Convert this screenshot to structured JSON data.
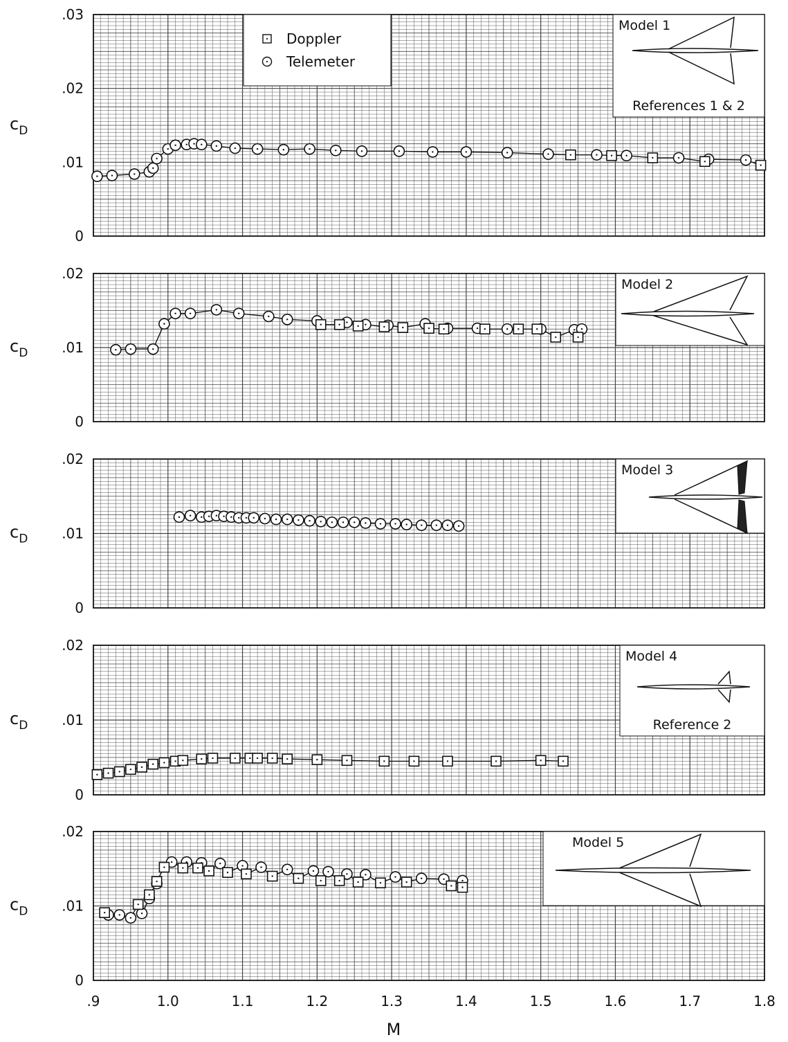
{
  "chart_data": [
    {
      "type": "scatter",
      "ylabel": "CD",
      "xlim": [
        0.9,
        1.8
      ],
      "ylim": [
        0,
        0.03
      ],
      "yticks": [
        "0",
        ".01",
        ".02",
        ".03"
      ],
      "grid": true,
      "legend": {
        "placement": "top-center",
        "entries": [
          {
            "symbol": "square",
            "label": "Doppler"
          },
          {
            "symbol": "circle",
            "label": "Telemeter"
          }
        ]
      },
      "annotation": {
        "title": "Model 1",
        "subtitle": "References 1 & 2",
        "planform": "model1"
      },
      "series": [
        {
          "name": "Telemeter",
          "marker": "circle",
          "x": [
            0.905,
            0.925,
            0.955,
            0.975,
            0.98,
            0.985,
            1.0,
            1.01,
            1.025,
            1.035,
            1.045,
            1.065,
            1.09,
            1.12,
            1.155,
            1.19,
            1.225,
            1.26,
            1.31,
            1.355,
            1.4,
            1.455,
            1.51,
            1.575,
            1.615,
            1.685,
            1.725,
            1.775
          ],
          "y": [
            0.0081,
            0.0082,
            0.0084,
            0.0087,
            0.0092,
            0.0105,
            0.0118,
            0.0123,
            0.0124,
            0.0125,
            0.0124,
            0.0122,
            0.0119,
            0.0118,
            0.0117,
            0.0118,
            0.0116,
            0.0115,
            0.0115,
            0.0114,
            0.0114,
            0.0113,
            0.0111,
            0.011,
            0.0109,
            0.0106,
            0.0104,
            0.0103
          ]
        },
        {
          "name": "Doppler",
          "marker": "square",
          "x": [
            1.54,
            1.595,
            1.65,
            1.72,
            1.795
          ],
          "y": [
            0.011,
            0.0109,
            0.0106,
            0.0101,
            0.0096
          ]
        }
      ]
    },
    {
      "type": "scatter",
      "ylabel": "CD",
      "xlim": [
        0.9,
        1.8
      ],
      "ylim": [
        0,
        0.02
      ],
      "yticks": [
        "0",
        ".01",
        ".02"
      ],
      "grid": true,
      "annotation": {
        "title": "Model 2",
        "planform": "model2"
      },
      "series": [
        {
          "name": "Telemeter",
          "marker": "circle",
          "x": [
            0.93,
            0.95,
            0.98,
            0.995,
            1.01,
            1.03,
            1.065,
            1.095,
            1.135,
            1.16,
            1.2,
            1.24,
            1.265,
            1.295,
            1.345,
            1.375,
            1.415,
            1.455,
            1.5,
            1.545,
            1.555
          ],
          "y": [
            0.0097,
            0.0098,
            0.0098,
            0.0132,
            0.0146,
            0.0146,
            0.0151,
            0.0146,
            0.0142,
            0.0138,
            0.0136,
            0.0134,
            0.0131,
            0.013,
            0.0132,
            0.0126,
            0.0126,
            0.0125,
            0.0125,
            0.0124,
            0.0125
          ]
        },
        {
          "name": "Doppler",
          "marker": "square",
          "x": [
            1.205,
            1.23,
            1.255,
            1.29,
            1.315,
            1.35,
            1.37,
            1.425,
            1.47,
            1.495,
            1.52,
            1.55
          ],
          "y": [
            0.0131,
            0.0131,
            0.0129,
            0.0128,
            0.0127,
            0.0126,
            0.0125,
            0.0125,
            0.0125,
            0.0125,
            0.0114,
            0.0114
          ]
        }
      ]
    },
    {
      "type": "scatter",
      "ylabel": "CD",
      "xlim": [
        0.9,
        1.8
      ],
      "ylim": [
        0,
        0.02
      ],
      "yticks": [
        "0",
        ".01",
        ".02"
      ],
      "grid": true,
      "annotation": {
        "title": "Model 3",
        "planform": "model3"
      },
      "series": [
        {
          "name": "Telemeter",
          "marker": "circle",
          "x": [
            1.015,
            1.03,
            1.045,
            1.055,
            1.065,
            1.075,
            1.085,
            1.095,
            1.105,
            1.115,
            1.13,
            1.145,
            1.16,
            1.175,
            1.19,
            1.205,
            1.22,
            1.235,
            1.25,
            1.265,
            1.285,
            1.305,
            1.32,
            1.34,
            1.36,
            1.375,
            1.39
          ],
          "y": [
            0.0122,
            0.0124,
            0.0122,
            0.0123,
            0.0124,
            0.0123,
            0.0122,
            0.0121,
            0.0121,
            0.0121,
            0.012,
            0.0119,
            0.0119,
            0.0118,
            0.0117,
            0.0116,
            0.0115,
            0.0115,
            0.0115,
            0.0114,
            0.0113,
            0.0113,
            0.0112,
            0.0111,
            0.0111,
            0.0111,
            0.011
          ]
        }
      ]
    },
    {
      "type": "scatter",
      "ylabel": "CD",
      "xlim": [
        0.9,
        1.8
      ],
      "ylim": [
        0,
        0.02
      ],
      "yticks": [
        "0",
        ".01",
        ".02"
      ],
      "grid": true,
      "annotation": {
        "title": "Model 4",
        "subtitle": "Reference 2",
        "planform": "model4"
      },
      "series": [
        {
          "name": "Doppler",
          "marker": "square",
          "x": [
            0.905,
            0.92,
            0.935,
            0.95,
            0.965,
            0.98,
            0.995,
            1.01,
            1.02,
            1.045,
            1.06,
            1.09,
            1.11,
            1.12,
            1.14,
            1.16,
            1.2,
            1.24,
            1.29,
            1.33,
            1.375,
            1.44,
            1.5,
            1.53
          ],
          "y": [
            0.0027,
            0.0029,
            0.0031,
            0.0034,
            0.0037,
            0.0041,
            0.0043,
            0.0045,
            0.0046,
            0.0048,
            0.0049,
            0.0049,
            0.0049,
            0.0049,
            0.0049,
            0.0048,
            0.0047,
            0.0046,
            0.0045,
            0.0045,
            0.0045,
            0.0045,
            0.0046,
            0.0045
          ]
        }
      ]
    },
    {
      "type": "scatter",
      "ylabel": "CD",
      "xlim": [
        0.9,
        1.8
      ],
      "ylim": [
        0,
        0.02
      ],
      "yticks": [
        "0",
        ".01",
        ".02"
      ],
      "grid": true,
      "annotation": {
        "title": "Model 5",
        "planform": "model5"
      },
      "series": [
        {
          "name": "Telemeter",
          "marker": "circle",
          "x": [
            0.92,
            0.935,
            0.95,
            0.965,
            0.975,
            0.985,
            1.005,
            1.025,
            1.045,
            1.07,
            1.1,
            1.125,
            1.16,
            1.195,
            1.215,
            1.24,
            1.265,
            1.305,
            1.34,
            1.37,
            1.395
          ],
          "y": [
            0.0088,
            0.0088,
            0.0084,
            0.009,
            0.011,
            0.013,
            0.0159,
            0.0159,
            0.0158,
            0.0157,
            0.0154,
            0.0152,
            0.0149,
            0.0147,
            0.0146,
            0.0143,
            0.0142,
            0.0139,
            0.0137,
            0.0136,
            0.0134
          ]
        },
        {
          "name": "Doppler",
          "marker": "square",
          "x": [
            0.915,
            0.96,
            0.975,
            0.985,
            0.995,
            1.02,
            1.04,
            1.055,
            1.08,
            1.105,
            1.14,
            1.175,
            1.205,
            1.23,
            1.255,
            1.285,
            1.32,
            1.38,
            1.395
          ],
          "y": [
            0.0091,
            0.0102,
            0.0115,
            0.0133,
            0.0152,
            0.0151,
            0.0151,
            0.0147,
            0.0145,
            0.0143,
            0.014,
            0.0137,
            0.0134,
            0.0134,
            0.0132,
            0.0131,
            0.0132,
            0.0127,
            0.0125
          ]
        }
      ]
    }
  ],
  "xaxis": {
    "label": "M",
    "ticks": [
      ".9",
      "1.0",
      "1.1",
      "1.2",
      "1.3",
      "1.4",
      "1.5",
      "1.6",
      "1.7",
      "1.8"
    ]
  }
}
